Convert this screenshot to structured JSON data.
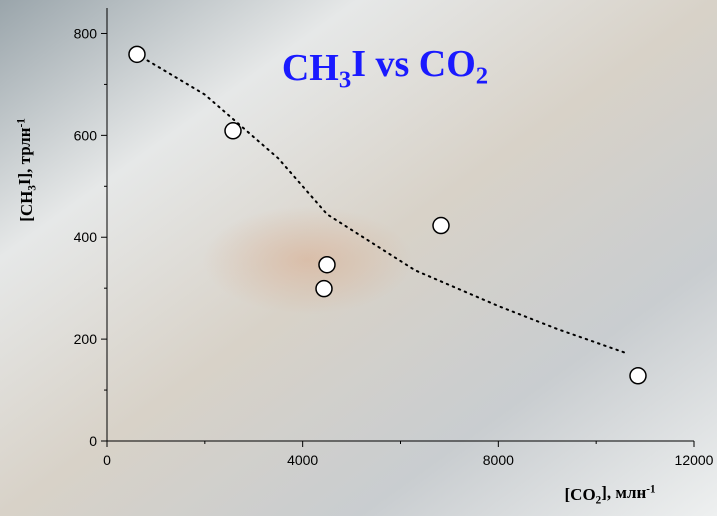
{
  "chart_data": {
    "type": "scatter",
    "title": "CH3I vs CO2",
    "x_label": "[CO2], млн-1",
    "y_label": "[CH3I], трлн-1",
    "xlim": [
      0,
      12000
    ],
    "xticks": [
      0,
      4000,
      8000,
      12000
    ],
    "xminorticks": [
      2000,
      6000,
      10000
    ],
    "ylim": [
      0,
      850
    ],
    "yticks": [
      0,
      200,
      400,
      600,
      800
    ],
    "yminorticks": [
      100,
      300,
      500,
      700
    ],
    "series": [
      {
        "kind": "points",
        "color": "#000000",
        "x": [
          613,
          2576,
          4436,
          4497,
          6828,
          10855
        ],
        "values": [
          759,
          609,
          299,
          346,
          423,
          128
        ]
      },
      {
        "kind": "trend",
        "color": "#000000",
        "x": [
          600,
          2000,
          3500,
          4500,
          6300,
          8000,
          9200,
          10600
        ],
        "values": [
          760,
          680,
          555,
          445,
          335,
          265,
          220,
          173
        ]
      }
    ]
  }
}
